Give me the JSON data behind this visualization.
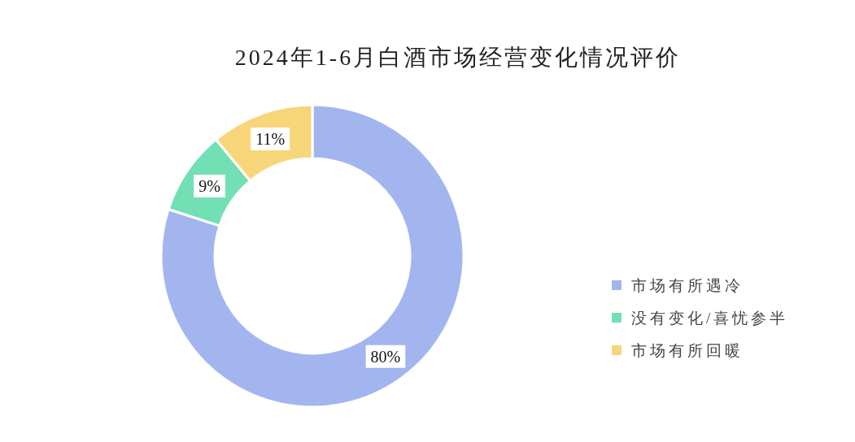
{
  "chart_data": {
    "type": "donut",
    "title": "2024年1-6月白酒市场经营变化情况评价",
    "categories": [
      "市场有所遇冷",
      "没有变化/喜忧参半",
      "市场有所回暖"
    ],
    "values": [
      80,
      9,
      11
    ],
    "colors": [
      "#a2b5ef",
      "#72e0b4",
      "#f7d67a"
    ],
    "value_labels": [
      "80%",
      "9%",
      "11%"
    ],
    "legend": "right"
  }
}
